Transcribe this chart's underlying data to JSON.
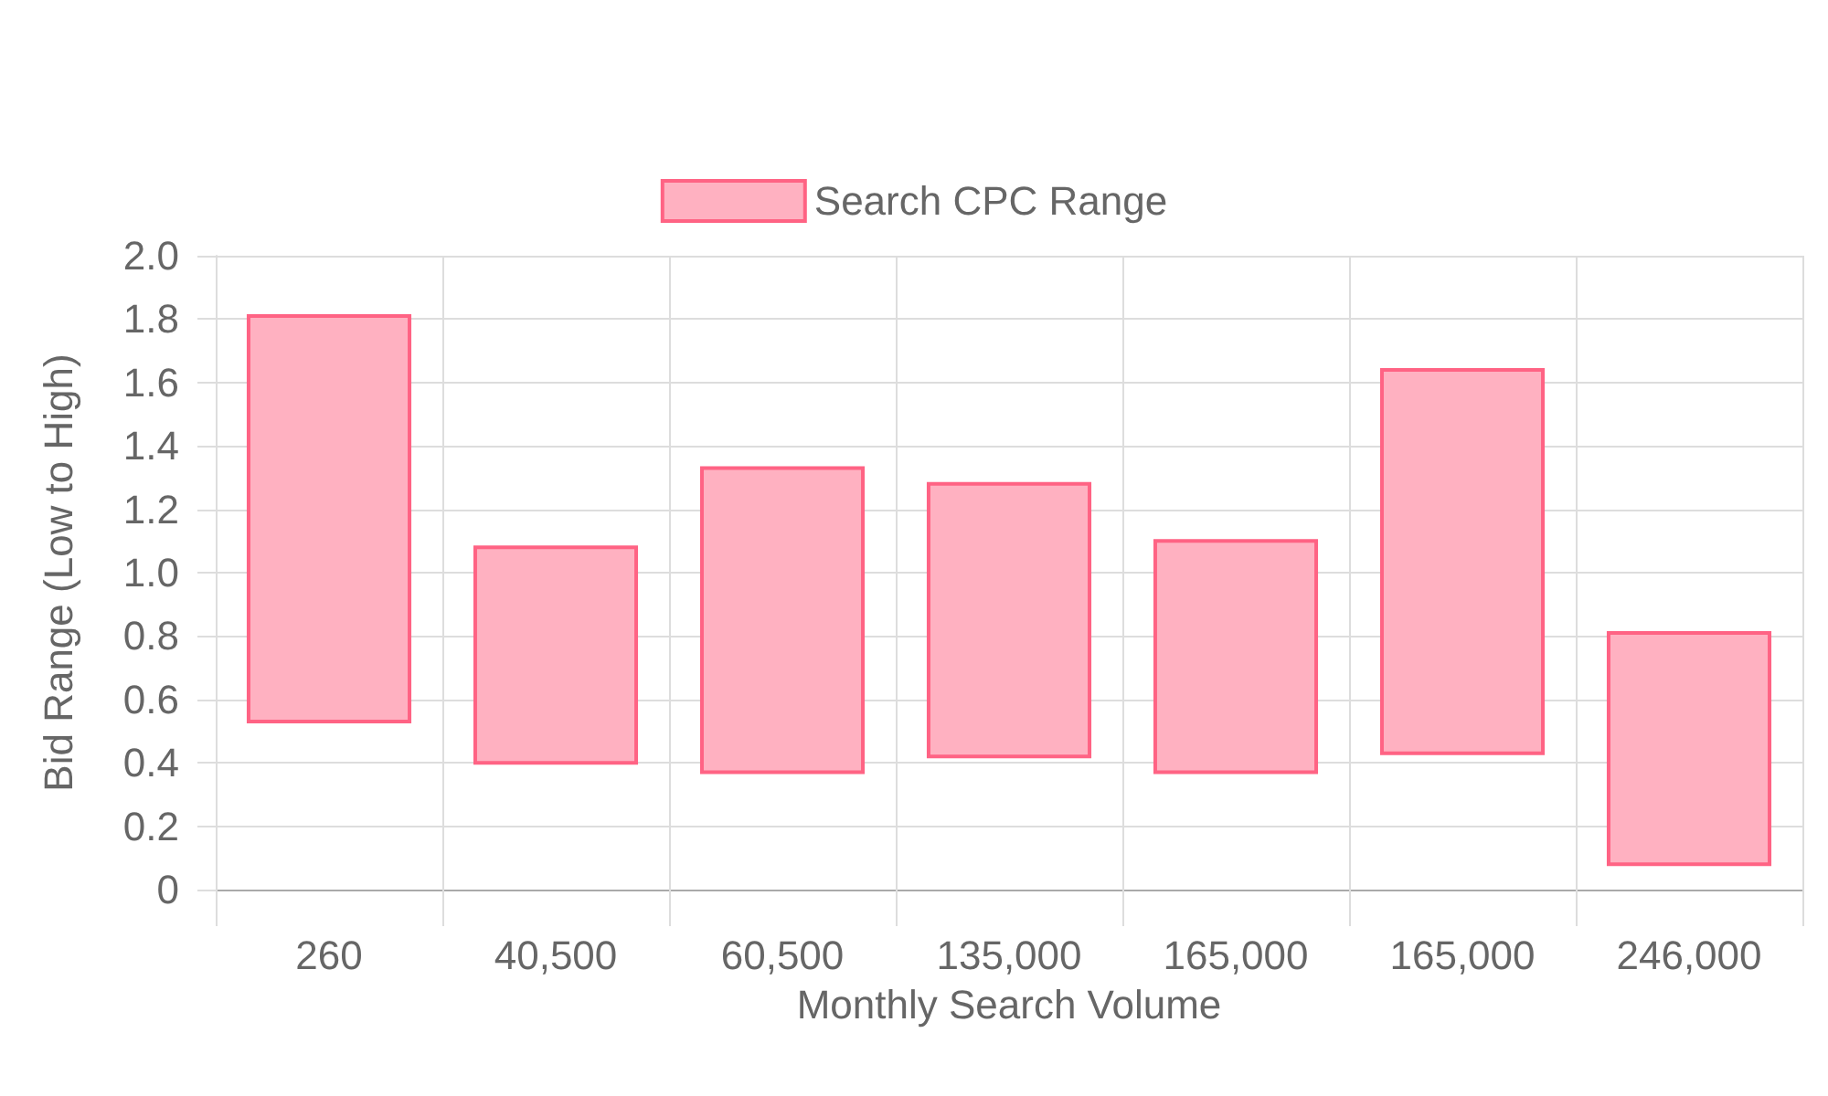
{
  "chart_data": {
    "type": "bar",
    "xlabel": "Monthly Search Volume",
    "ylabel": "Bid Range (Low to High)",
    "categories": [
      "260",
      "40,500",
      "60,500",
      "135,000",
      "165,000",
      "165,000",
      "246,000"
    ],
    "series": [
      {
        "name": "Search CPC Range",
        "color": "#ffb1c1",
        "values": [
          1.28,
          0.68,
          0.96,
          0.86,
          0.73,
          1.21,
          0.73
        ],
        "base": [
          0.53,
          0.4,
          0.37,
          0.42,
          0.37,
          0.43,
          0.08
        ]
      }
    ],
    "ylim": [
      0,
      2
    ],
    "yticks": [
      0,
      0.2,
      0.4,
      0.6,
      0.8,
      {
        "value": 1,
        "label": "1.0"
      },
      1.2,
      1.4,
      1.6,
      1.8,
      {
        "value": 2,
        "label": "2.0"
      }
    ],
    "grid": true,
    "legend": "top"
  }
}
